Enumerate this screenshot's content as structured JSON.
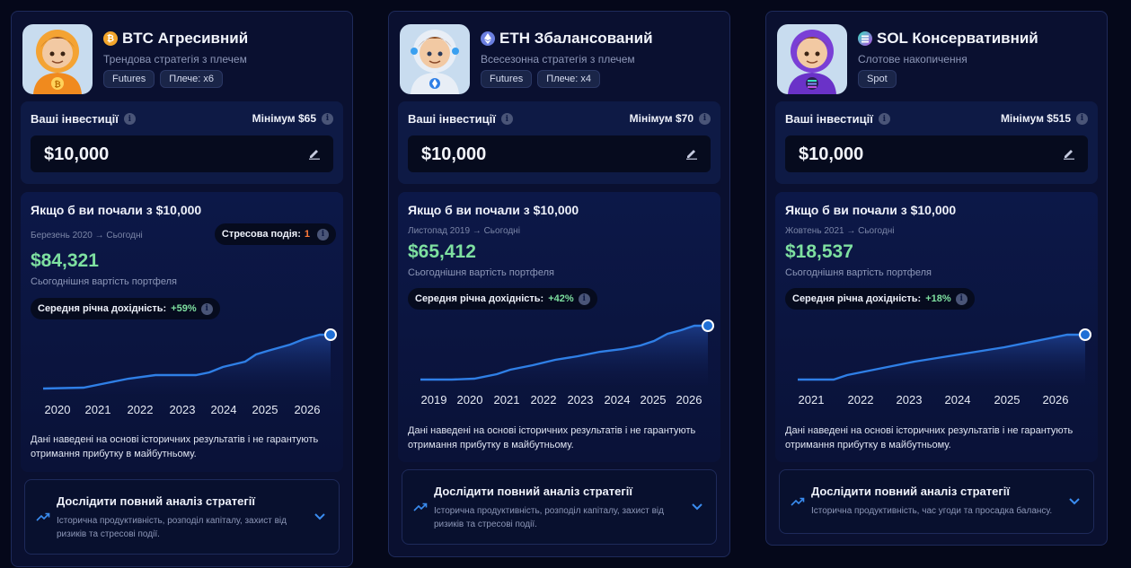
{
  "common": {
    "investments_label": "Ваші інвестиції",
    "sim_title": "Якщо б ви почали з $10,000",
    "today_label": "Сьогоднішня вартість портфеля",
    "cagr_label": "Середня річна дохідність:",
    "stress_label": "Стресова подія:",
    "disclaimer": "Дані наведені на основі історичних результатів і не гарантують отримання прибутку в майбутньому.",
    "analysis_title": "Дослідити повний аналіз стратегії"
  },
  "colors": {
    "accent_green": "#7ee0a0",
    "line_blue": "#2f7fe6",
    "stress_orange": "#ff7a3a",
    "btc": "#f3a52b",
    "eth": "#6b7fe0",
    "sol": "#b04de0"
  },
  "cards": [
    {
      "avatar_icon": "btc-astronaut-avatar",
      "coin_icon": "bitcoin-icon",
      "title": "BTC Агресивний",
      "subtitle": "Трендова стратегія з плечем",
      "tags": [
        "Futures",
        "Плече: x6"
      ],
      "minimum": "Мінімум $65",
      "amount": "$10,000",
      "period": "Березень 2020 → Сьогодні",
      "stress_count": "1",
      "value": "$84,321",
      "cagr": "+59%",
      "chart_years": [
        "2020",
        "2021",
        "2022",
        "2023",
        "2024",
        "2025",
        "2026"
      ],
      "analysis_desc": "Історична продуктивність, розподіл капіталу, захист від ризиків та стресові події."
    },
    {
      "avatar_icon": "eth-astronaut-avatar",
      "coin_icon": "ethereum-icon",
      "title": "ETH Збалансований",
      "subtitle": "Всесезонна стратегія з плечем",
      "tags": [
        "Futures",
        "Плече: x4"
      ],
      "minimum": "Мінімум $70",
      "amount": "$10,000",
      "period": "Листопад 2019 → Сьогодні",
      "value": "$65,412",
      "cagr": "+42%",
      "chart_years": [
        "2019",
        "2020",
        "2021",
        "2022",
        "2023",
        "2024",
        "2025",
        "2026"
      ],
      "analysis_desc": "Історична продуктивність, розподіл капіталу, захист від ризиків та стресові події."
    },
    {
      "avatar_icon": "sol-astronaut-avatar",
      "coin_icon": "solana-icon",
      "title": "SOL Консервативний",
      "subtitle": "Слотове накопичення",
      "tags": [
        "Spot"
      ],
      "minimum": "Мінімум $515",
      "amount": "$10,000",
      "period": "Жовтень 2021 → Сьогодні",
      "value": "$18,537",
      "cagr": "+18%",
      "chart_years": [
        "2021",
        "2022",
        "2023",
        "2024",
        "2025",
        "2026"
      ],
      "analysis_desc": "Історична продуктивність, час угоди та просадка балансу."
    }
  ]
}
